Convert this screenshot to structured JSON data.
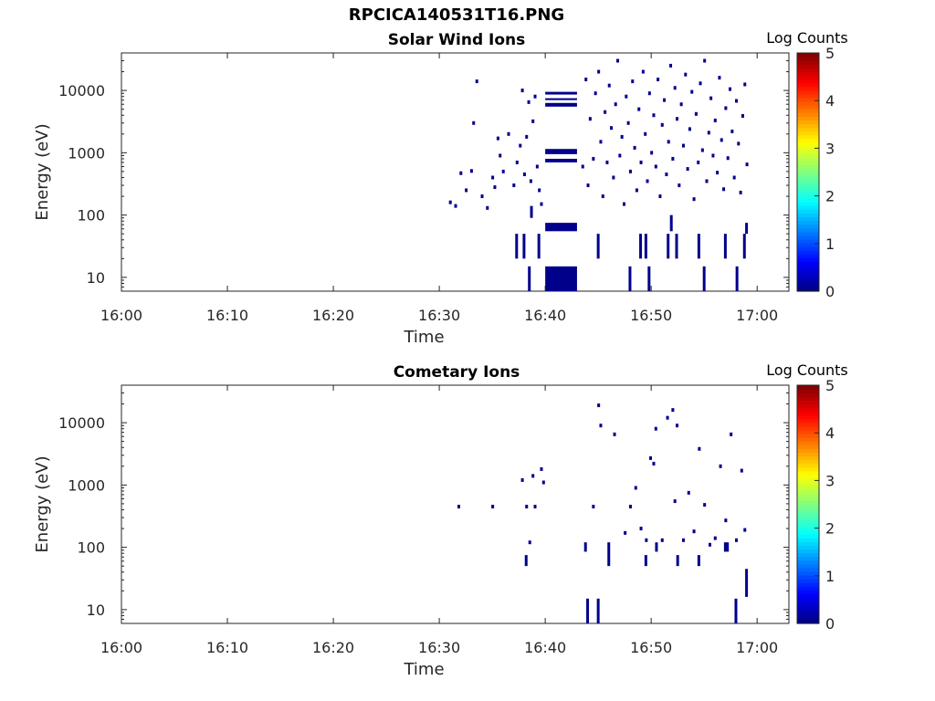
{
  "figure": {
    "title": "RPCICA140531T16.PNG"
  },
  "chart_data": [
    {
      "type": "heatmap",
      "title": "Solar Wind Ions",
      "xlabel": "Time",
      "ylabel": "Energy (eV)",
      "yscale": "log",
      "xlim": [
        "16:00",
        "17:03"
      ],
      "ylim": [
        6,
        40000
      ],
      "x_ticks": [
        "16:00",
        "16:10",
        "16:20",
        "16:30",
        "16:40",
        "16:50",
        "17:00"
      ],
      "y_ticks": [
        "10",
        "100",
        "1000",
        "10000"
      ],
      "colorbar": {
        "label": "Log Counts",
        "min": 0,
        "max": 5,
        "ticks": [
          "0",
          "1",
          "2",
          "3",
          "4",
          "5"
        ],
        "colormap": "jet"
      },
      "color_low": "#00008b",
      "blocks": [
        {
          "t0": "16:40.0",
          "t1": "16:43.0",
          "e0": 6,
          "e1": 15
        },
        {
          "t0": "16:40.0",
          "t1": "16:43.0",
          "e0": 55,
          "e1": 75
        },
        {
          "t0": "16:40.0",
          "t1": "16:43.0",
          "e0": 700,
          "e1": 800
        },
        {
          "t0": "16:40.0",
          "t1": "16:43.0",
          "e0": 950,
          "e1": 1150
        },
        {
          "t0": "16:40.0",
          "t1": "16:43.0",
          "e0": 5500,
          "e1": 6300
        },
        {
          "t0": "16:40.0",
          "t1": "16:43.0",
          "e0": 7000,
          "e1": 7500
        },
        {
          "t0": "16:40.0",
          "t1": "16:43.0",
          "e0": 8600,
          "e1": 9500
        }
      ],
      "events": [
        [
          "16:31.0",
          160
        ],
        [
          "16:31.5",
          140
        ],
        [
          "16:32.0",
          470
        ],
        [
          "16:32.5",
          250
        ],
        [
          "16:33.0",
          510
        ],
        [
          "16:33.2",
          3000
        ],
        [
          "16:33.5",
          14000
        ],
        [
          "16:34.0",
          200
        ],
        [
          "16:34.5",
          130
        ],
        [
          "16:35.0",
          400
        ],
        [
          "16:35.2",
          280
        ],
        [
          "16:35.5",
          1700
        ],
        [
          "16:35.7",
          900
        ],
        [
          "16:36.0",
          500
        ],
        [
          "16:36.5",
          2000
        ],
        [
          "16:37.0",
          300
        ],
        [
          "16:37.3",
          700
        ],
        [
          "16:37.6",
          1300
        ],
        [
          "16:37.8",
          10000
        ],
        [
          "16:38.0",
          450
        ],
        [
          "16:38.2",
          1800
        ],
        [
          "16:38.4",
          6500
        ],
        [
          "16:38.6",
          350
        ],
        [
          "16:38.8",
          3200
        ],
        [
          "16:39.0",
          8000
        ],
        [
          "16:39.2",
          600
        ],
        [
          "16:39.4",
          250
        ],
        [
          "16:39.6",
          150
        ],
        [
          "16:43.5",
          600
        ],
        [
          "16:43.8",
          15000
        ],
        [
          "16:44.0",
          300
        ],
        [
          "16:44.2",
          3500
        ],
        [
          "16:44.5",
          800
        ],
        [
          "16:44.7",
          9000
        ],
        [
          "16:45.0",
          20000
        ],
        [
          "16:45.2",
          1500
        ],
        [
          "16:45.4",
          200
        ],
        [
          "16:45.6",
          4500
        ],
        [
          "16:45.8",
          700
        ],
        [
          "16:46.0",
          12000
        ],
        [
          "16:46.2",
          2500
        ],
        [
          "16:46.4",
          400
        ],
        [
          "16:46.6",
          6000
        ],
        [
          "16:46.8",
          30000
        ],
        [
          "16:47.0",
          900
        ],
        [
          "16:47.2",
          1800
        ],
        [
          "16:47.4",
          150
        ],
        [
          "16:47.6",
          8000
        ],
        [
          "16:47.8",
          3000
        ],
        [
          "16:48.0",
          500
        ],
        [
          "16:48.2",
          14000
        ],
        [
          "16:48.4",
          1200
        ],
        [
          "16:48.6",
          250
        ],
        [
          "16:48.8",
          5000
        ],
        [
          "16:49.0",
          700
        ],
        [
          "16:49.2",
          20000
        ],
        [
          "16:49.4",
          2000
        ],
        [
          "16:49.6",
          350
        ],
        [
          "16:49.8",
          9000
        ],
        [
          "16:50.0",
          1000
        ],
        [
          "16:50.2",
          4000
        ],
        [
          "16:50.4",
          600
        ],
        [
          "16:50.6",
          15000
        ],
        [
          "16:50.8",
          200
        ],
        [
          "16:51.0",
          2800
        ],
        [
          "16:51.2",
          7000
        ],
        [
          "16:51.4",
          450
        ],
        [
          "16:51.6",
          1500
        ],
        [
          "16:51.8",
          25000
        ],
        [
          "16:52.0",
          800
        ],
        [
          "16:52.2",
          11000
        ],
        [
          "16:52.4",
          3500
        ],
        [
          "16:52.6",
          300
        ],
        [
          "16:52.8",
          6000
        ],
        [
          "16:53.0",
          1300
        ],
        [
          "16:53.2",
          18000
        ],
        [
          "16:53.4",
          550
        ],
        [
          "16:53.6",
          2400
        ],
        [
          "16:53.8",
          9500
        ],
        [
          "16:54.0",
          180
        ],
        [
          "16:54.2",
          4200
        ],
        [
          "16:54.4",
          700
        ],
        [
          "16:54.6",
          13000
        ],
        [
          "16:54.8",
          1100
        ],
        [
          "16:55.0",
          30000
        ],
        [
          "16:55.2",
          350
        ],
        [
          "16:55.4",
          2100
        ],
        [
          "16:55.6",
          7500
        ],
        [
          "16:55.8",
          900
        ],
        [
          "16:56.0",
          3300
        ],
        [
          "16:56.2",
          480
        ],
        [
          "16:56.4",
          16000
        ],
        [
          "16:56.6",
          1600
        ],
        [
          "16:56.8",
          260
        ],
        [
          "16:57.0",
          5200
        ],
        [
          "16:57.2",
          820
        ],
        [
          "16:57.4",
          10500
        ],
        [
          "16:57.6",
          2200
        ],
        [
          "16:57.8",
          400
        ],
        [
          "16:58.0",
          6800
        ],
        [
          "16:58.2",
          1400
        ],
        [
          "16:58.4",
          230
        ],
        [
          "16:58.6",
          3900
        ],
        [
          "16:58.8",
          12500
        ],
        [
          "16:59.0",
          650
        ]
      ],
      "bars": [
        {
          "t": "16:37.3",
          "e0": 20,
          "e1": 50
        },
        {
          "t": "16:38.0",
          "e0": 20,
          "e1": 50
        },
        {
          "t": "16:38.5",
          "e0": 6,
          "e1": 15
        },
        {
          "t": "16:38.7",
          "e0": 90,
          "e1": 140
        },
        {
          "t": "16:39.4",
          "e0": 20,
          "e1": 50
        },
        {
          "t": "16:45.0",
          "e0": 20,
          "e1": 50
        },
        {
          "t": "16:48.0",
          "e0": 6,
          "e1": 15
        },
        {
          "t": "16:49.0",
          "e0": 20,
          "e1": 50
        },
        {
          "t": "16:49.5",
          "e0": 20,
          "e1": 50
        },
        {
          "t": "16:49.8",
          "e0": 6,
          "e1": 15
        },
        {
          "t": "16:51.6",
          "e0": 20,
          "e1": 50
        },
        {
          "t": "16:51.9",
          "e0": 55,
          "e1": 100
        },
        {
          "t": "16:52.4",
          "e0": 20,
          "e1": 50
        },
        {
          "t": "16:54.5",
          "e0": 20,
          "e1": 50
        },
        {
          "t": "16:55.0",
          "e0": 6,
          "e1": 15
        },
        {
          "t": "16:57.0",
          "e0": 20,
          "e1": 50
        },
        {
          "t": "16:58.1",
          "e0": 6,
          "e1": 15
        },
        {
          "t": "16:58.8",
          "e0": 20,
          "e1": 50
        },
        {
          "t": "16:59.0",
          "e0": 50,
          "e1": 75
        }
      ]
    },
    {
      "type": "heatmap",
      "title": "Cometary Ions",
      "xlabel": "Time",
      "ylabel": "Energy (eV)",
      "yscale": "log",
      "xlim": [
        "16:00",
        "17:03"
      ],
      "ylim": [
        6,
        40000
      ],
      "x_ticks": [
        "16:00",
        "16:10",
        "16:20",
        "16:30",
        "16:40",
        "16:50",
        "17:00"
      ],
      "y_ticks": [
        "10",
        "100",
        "1000",
        "10000"
      ],
      "colorbar": {
        "label": "Log Counts",
        "min": 0,
        "max": 5,
        "ticks": [
          "0",
          "1",
          "2",
          "3",
          "4",
          "5"
        ],
        "colormap": "jet"
      },
      "color_low": "#00008b",
      "blocks": [],
      "events": [
        [
          "16:31.8",
          450
        ],
        [
          "16:35.0",
          450
        ],
        [
          "16:37.8",
          1200
        ],
        [
          "16:38.2",
          450
        ],
        [
          "16:38.5",
          120
        ],
        [
          "16:38.8",
          1400
        ],
        [
          "16:39.0",
          450
        ],
        [
          "16:39.6",
          1800
        ],
        [
          "16:39.8",
          1100
        ],
        [
          "16:44.5",
          450
        ],
        [
          "16:45.0",
          19000
        ],
        [
          "16:45.2",
          9000
        ],
        [
          "16:46.5",
          6500
        ],
        [
          "16:47.5",
          170
        ],
        [
          "16:48.0",
          450
        ],
        [
          "16:48.5",
          900
        ],
        [
          "16:49.0",
          200
        ],
        [
          "16:49.5",
          130
        ],
        [
          "16:49.9",
          2700
        ],
        [
          "16:50.4",
          8000
        ],
        [
          "16:50.2",
          2200
        ],
        [
          "16:51.0",
          130
        ],
        [
          "16:51.5",
          12000
        ],
        [
          "16:52.0",
          16000
        ],
        [
          "16:52.4",
          9000
        ],
        [
          "16:52.2",
          550
        ],
        [
          "16:53.0",
          130
        ],
        [
          "16:53.5",
          750
        ],
        [
          "16:54.0",
          180
        ],
        [
          "16:54.5",
          3800
        ],
        [
          "16:55.0",
          480
        ],
        [
          "16:55.5",
          110
        ],
        [
          "16:56.0",
          140
        ],
        [
          "16:56.5",
          2000
        ],
        [
          "16:57.0",
          270
        ],
        [
          "16:57.5",
          6500
        ],
        [
          "16:58.0",
          130
        ],
        [
          "16:58.5",
          1700
        ],
        [
          "16:58.8",
          190
        ]
      ],
      "bars": [
        {
          "t": "16:38.2",
          "e0": 50,
          "e1": 75
        },
        {
          "t": "16:43.8",
          "e0": 85,
          "e1": 120
        },
        {
          "t": "16:44.0",
          "e0": 6,
          "e1": 15
        },
        {
          "t": "16:45.0",
          "e0": 6,
          "e1": 15
        },
        {
          "t": "16:46.0",
          "e0": 50,
          "e1": 120
        },
        {
          "t": "16:49.5",
          "e0": 50,
          "e1": 75
        },
        {
          "t": "16:50.5",
          "e0": 85,
          "e1": 120
        },
        {
          "t": "16:52.5",
          "e0": 50,
          "e1": 75
        },
        {
          "t": "16:54.5",
          "e0": 50,
          "e1": 75
        },
        {
          "t": "16:57.0",
          "e0": 85,
          "e1": 120
        },
        {
          "t": "16:57.2",
          "e0": 85,
          "e1": 120
        },
        {
          "t": "16:58.0",
          "e0": 6,
          "e1": 15
        },
        {
          "t": "16:59.0",
          "e0": 16,
          "e1": 45
        }
      ]
    }
  ]
}
